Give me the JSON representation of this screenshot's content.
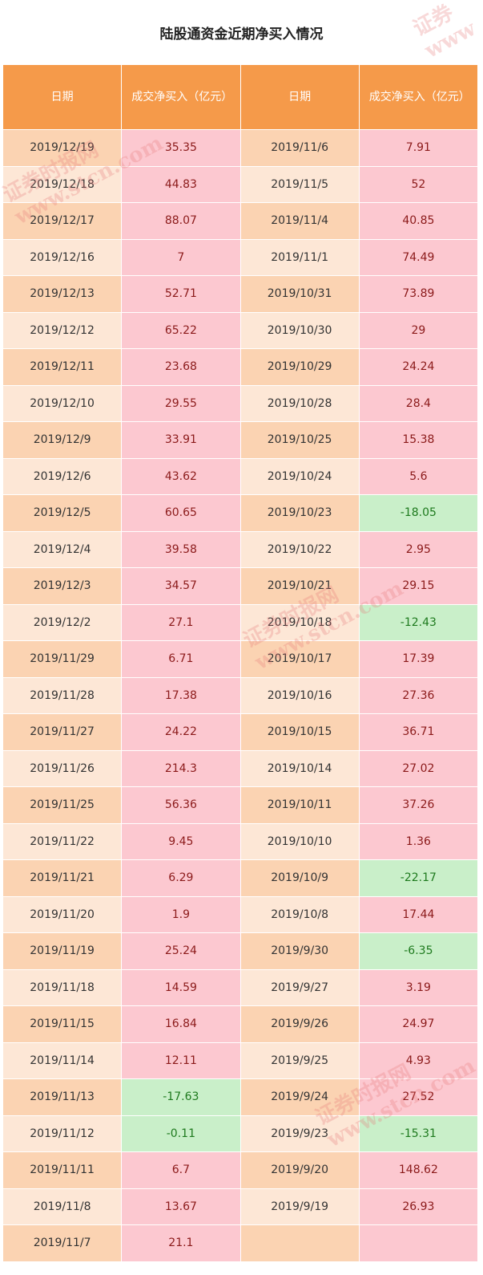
{
  "title": "陆股通资金近期净买入情况",
  "headers": [
    "日期",
    "成交净买入（亿元）",
    "日期",
    "成交净买入（亿元）"
  ],
  "rows": [
    {
      "d1": "2019/12/19",
      "v1": "35.35",
      "d2": "2019/11/6",
      "v2": "7.91"
    },
    {
      "d1": "2019/12/18",
      "v1": "44.83",
      "d2": "2019/11/5",
      "v2": "52"
    },
    {
      "d1": "2019/12/17",
      "v1": "88.07",
      "d2": "2019/11/4",
      "v2": "40.85"
    },
    {
      "d1": "2019/12/16",
      "v1": "7",
      "d2": "2019/11/1",
      "v2": "74.49"
    },
    {
      "d1": "2019/12/13",
      "v1": "52.71",
      "d2": "2019/10/31",
      "v2": "73.89"
    },
    {
      "d1": "2019/12/12",
      "v1": "65.22",
      "d2": "2019/10/30",
      "v2": "29"
    },
    {
      "d1": "2019/12/11",
      "v1": "23.68",
      "d2": "2019/10/29",
      "v2": "24.24"
    },
    {
      "d1": "2019/12/10",
      "v1": "29.55",
      "d2": "2019/10/28",
      "v2": "28.4"
    },
    {
      "d1": "2019/12/9",
      "v1": "33.91",
      "d2": "2019/10/25",
      "v2": "15.38"
    },
    {
      "d1": "2019/12/6",
      "v1": "43.62",
      "d2": "2019/10/24",
      "v2": "5.6"
    },
    {
      "d1": "2019/12/5",
      "v1": "60.65",
      "d2": "2019/10/23",
      "v2": "-18.05"
    },
    {
      "d1": "2019/12/4",
      "v1": "39.58",
      "d2": "2019/10/22",
      "v2": "2.95"
    },
    {
      "d1": "2019/12/3",
      "v1": "34.57",
      "d2": "2019/10/21",
      "v2": "29.15"
    },
    {
      "d1": "2019/12/2",
      "v1": "27.1",
      "d2": "2019/10/18",
      "v2": "-12.43"
    },
    {
      "d1": "2019/11/29",
      "v1": "6.71",
      "d2": "2019/10/17",
      "v2": "17.39"
    },
    {
      "d1": "2019/11/28",
      "v1": "17.38",
      "d2": "2019/10/16",
      "v2": "27.36"
    },
    {
      "d1": "2019/11/27",
      "v1": "24.22",
      "d2": "2019/10/15",
      "v2": "36.71"
    },
    {
      "d1": "2019/11/26",
      "v1": "214.3",
      "d2": "2019/10/14",
      "v2": "27.02"
    },
    {
      "d1": "2019/11/25",
      "v1": "56.36",
      "d2": "2019/10/11",
      "v2": "37.26"
    },
    {
      "d1": "2019/11/22",
      "v1": "9.45",
      "d2": "2019/10/10",
      "v2": "1.36"
    },
    {
      "d1": "2019/11/21",
      "v1": "6.29",
      "d2": "2019/10/9",
      "v2": "-22.17"
    },
    {
      "d1": "2019/11/20",
      "v1": "1.9",
      "d2": "2019/10/8",
      "v2": "17.44"
    },
    {
      "d1": "2019/11/19",
      "v1": "25.24",
      "d2": "2019/9/30",
      "v2": "-6.35"
    },
    {
      "d1": "2019/11/18",
      "v1": "14.59",
      "d2": "2019/9/27",
      "v2": "3.19"
    },
    {
      "d1": "2019/11/15",
      "v1": "16.84",
      "d2": "2019/9/26",
      "v2": "24.97"
    },
    {
      "d1": "2019/11/14",
      "v1": "12.11",
      "d2": "2019/9/25",
      "v2": "4.93"
    },
    {
      "d1": "2019/11/13",
      "v1": "-17.63",
      "d2": "2019/9/24",
      "v2": "27.52"
    },
    {
      "d1": "2019/11/12",
      "v1": "-0.11",
      "d2": "2019/9/23",
      "v2": "-15.31"
    },
    {
      "d1": "2019/11/11",
      "v1": "6.7",
      "d2": "2019/9/20",
      "v2": "148.62"
    },
    {
      "d1": "2019/11/8",
      "v1": "13.67",
      "d2": "2019/9/19",
      "v2": "26.93"
    },
    {
      "d1": "2019/11/7",
      "v1": "21.1",
      "d2": "",
      "v2": ""
    }
  ],
  "colors": {
    "header_bg": "#f59a4a",
    "date_odd_bg": "#fbd3b2",
    "date_even_bg": "#fde7d6",
    "positive_bg": "#fcc8d0",
    "negative_bg": "#c9efc9",
    "positive_text": "#8b1a1a",
    "negative_text": "#1e7a1e"
  },
  "watermark": {
    "line1": "证券时报网",
    "line2": "www.stcn.com"
  }
}
